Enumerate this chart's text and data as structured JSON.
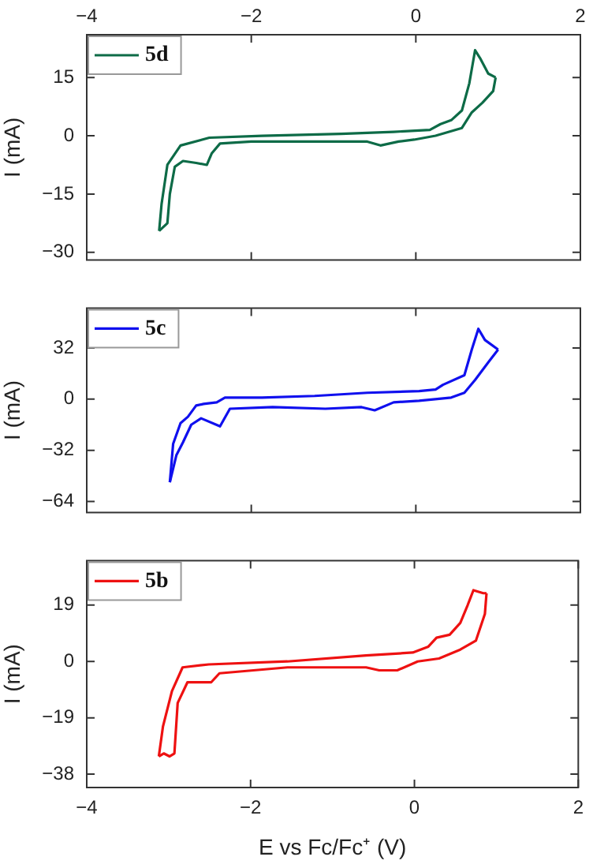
{
  "chart_data": [
    {
      "type": "line",
      "ylabel": "I (mA)",
      "legend": "top left",
      "marker": "none",
      "grid": false,
      "tick_labels": "y",
      "xlim": [
        -4,
        2
      ],
      "xticks": [
        -4,
        -2,
        0,
        2
      ],
      "x2lim": [
        -4,
        2
      ],
      "x2ticks": [
        -4,
        -2,
        0,
        2
      ],
      "ylim": [
        -32,
        26
      ],
      "yticks": [
        -30,
        -15,
        0,
        15
      ],
      "series": [
        {
          "name": "5d",
          "color": "#0d6b47",
          "x": [
            -3.12,
            -3.09,
            -3.02,
            -2.86,
            -2.51,
            -1.87,
            -0.91,
            -0.27,
            0.17,
            0.3,
            0.43,
            0.56,
            0.65,
            0.72,
            0.78,
            0.88,
            0.97
          ],
          "values": [
            -24.5,
            -17.5,
            -7.5,
            -2.5,
            -0.5,
            0,
            0.5,
            1,
            1.5,
            3,
            4,
            6.5,
            13.5,
            22,
            20,
            16,
            15
          ]
        },
        {
          "color": "#0d6b47",
          "x": [
            0.97,
            0.94,
            0.81,
            0.68,
            0.56,
            0.24,
            -0.02,
            -0.21,
            -0.43,
            -0.59,
            -1.23,
            -2.0,
            -2.38,
            -2.48,
            -2.54,
            -2.67,
            -2.83,
            -2.93,
            -2.99,
            -3.02,
            -3.12
          ],
          "values": [
            15,
            11.5,
            8.5,
            6,
            2,
            0,
            -1,
            -1.5,
            -2.5,
            -1.5,
            -1.5,
            -1.5,
            -2,
            -4.5,
            -7.5,
            -7,
            -6.5,
            -8,
            -15,
            -22.5,
            -24.5
          ]
        }
      ]
    },
    {
      "type": "line",
      "ylabel": "I (mA)",
      "legend": "top left",
      "marker": "none",
      "grid": false,
      "tick_labels": "y",
      "xlim": [
        -4,
        2
      ],
      "xticks": [
        -4,
        -2,
        0,
        2
      ],
      "ylim": [
        -71,
        57
      ],
      "yticks": [
        -64,
        -32,
        0,
        32
      ],
      "series": [
        {
          "name": "5c",
          "color": "#1010ee",
          "x": [
            -2.99,
            -2.95,
            -2.86,
            -2.77,
            -2.67,
            -2.58,
            -2.42,
            -2.32,
            -1.87,
            -1.23,
            -0.59,
            0.04,
            0.24,
            0.33,
            0.59,
            0.68,
            0.76,
            0.84,
            1.0
          ],
          "values": [
            -52,
            -28,
            -15,
            -11,
            -4,
            -3,
            -2,
            1,
            1,
            2,
            4,
            5,
            6,
            9,
            15,
            31,
            44,
            37,
            31
          ]
        },
        {
          "color": "#1010ee",
          "x": [
            1.0,
            0.88,
            0.72,
            0.59,
            0.43,
            0.04,
            -0.27,
            -0.5,
            -0.66,
            -1.1,
            -1.74,
            -2.26,
            -2.38,
            -2.61,
            -2.73,
            -2.83,
            -2.91,
            -2.99
          ],
          "values": [
            31,
            23,
            12,
            4,
            1,
            -1,
            -2,
            -7,
            -5,
            -6,
            -5,
            -6,
            -17,
            -12,
            -16,
            -27,
            -35,
            -52
          ]
        }
      ]
    },
    {
      "type": "line",
      "xlabel": "E vs Fc/Fc⁺ (V)",
      "ylabel": "I (mA)",
      "legend": "top left",
      "marker": "none",
      "grid": false,
      "xlim": [
        -4,
        2
      ],
      "xticks": [
        -4,
        -2,
        0,
        2
      ],
      "ylim": [
        -42.5,
        34
      ],
      "yticks": [
        -38,
        -19,
        0,
        19
      ],
      "series": [
        {
          "name": "5b",
          "color": "#ee1111",
          "x": [
            -3.12,
            -3.07,
            -2.96,
            -2.83,
            -2.51,
            -1.55,
            -0.59,
            -0.02,
            0.17,
            0.27,
            0.43,
            0.56,
            0.65,
            0.72,
            0.84,
            0.88
          ],
          "values": [
            -32,
            -22,
            -10,
            -2,
            -1,
            0,
            2,
            3,
            5,
            8,
            9,
            13,
            19,
            24,
            23,
            23
          ]
        },
        {
          "color": "#ee1111",
          "x": [
            0.88,
            0.86,
            0.75,
            0.56,
            0.3,
            0.04,
            -0.21,
            -0.43,
            -0.59,
            -1.55,
            -2.38,
            -2.48,
            -2.61,
            -2.77,
            -2.89,
            -2.93,
            -2.99,
            -3.06,
            -3.12
          ],
          "values": [
            23,
            16,
            7,
            4,
            1,
            0,
            -3,
            -3,
            -2,
            -2,
            -4,
            -7,
            -7,
            -7,
            -14,
            -31,
            -32,
            -31,
            -32
          ]
        }
      ]
    }
  ]
}
